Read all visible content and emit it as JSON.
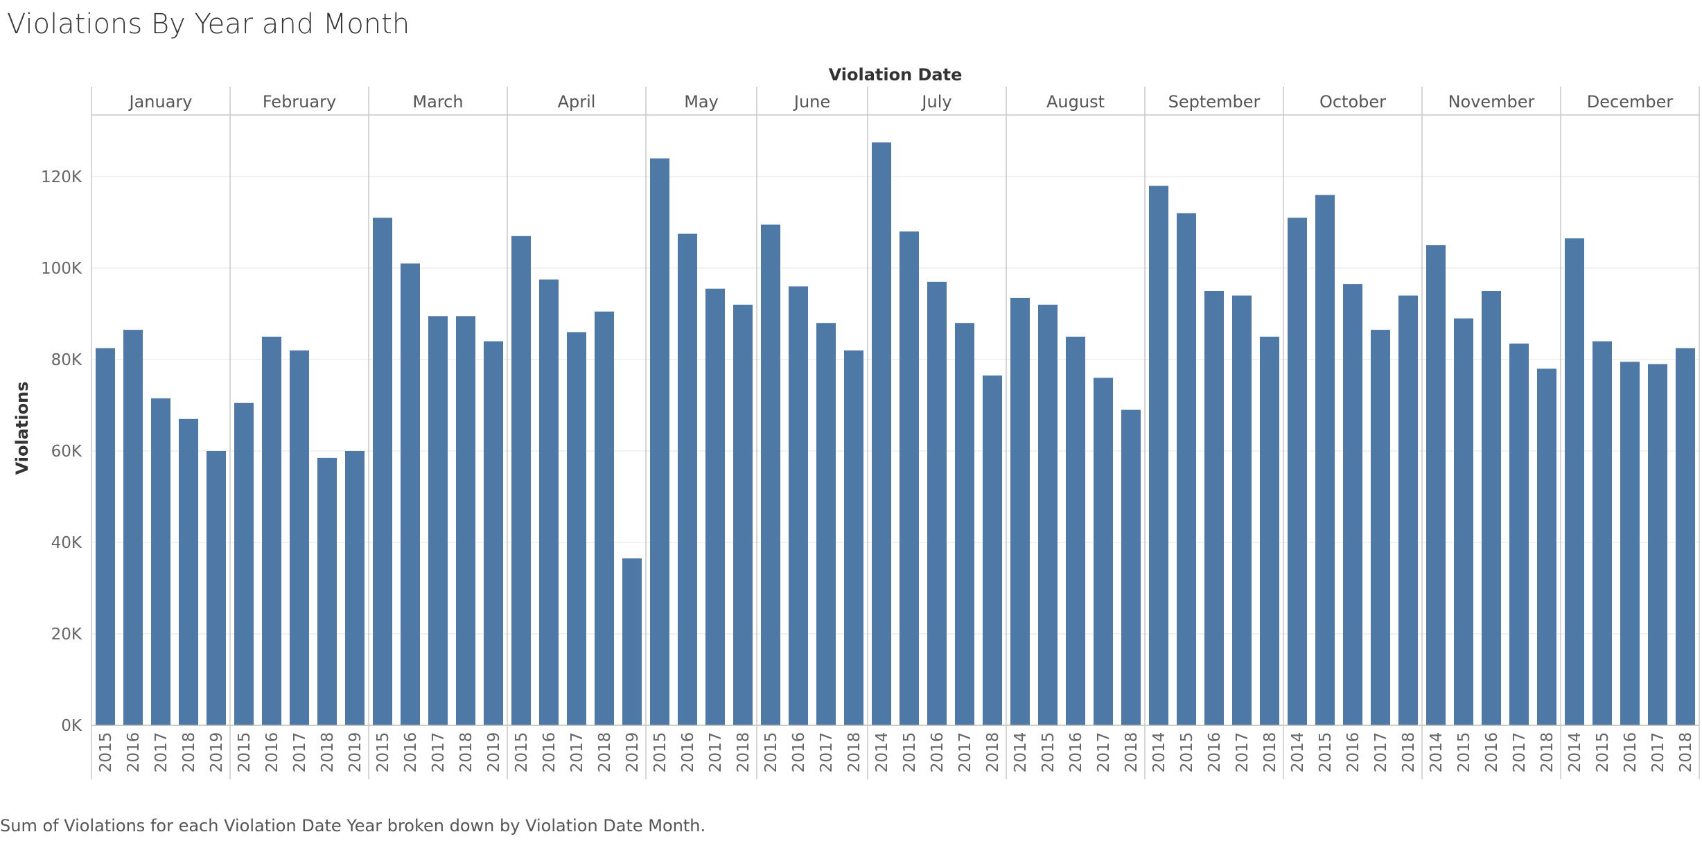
{
  "title": "Violations By Year and Month",
  "caption": "Sum of Violations for each Violation Date Year broken down by Violation Date Month.",
  "colors": {
    "bar": "#4e79a7",
    "divider": "#c8c8c8",
    "grid": "#eeeeee",
    "text": "#333333"
  },
  "chart_data": {
    "type": "bar",
    "column_header": "Violation Date",
    "ylabel": "Violations",
    "ylim": [
      0,
      132000
    ],
    "yticks": [
      0,
      20000,
      40000,
      60000,
      80000,
      100000,
      120000
    ],
    "ytick_labels": [
      "0K",
      "20K",
      "40K",
      "60K",
      "80K",
      "100K",
      "120K"
    ],
    "grid": true,
    "groups": [
      {
        "month": "January",
        "years": [
          "2015",
          "2016",
          "2017",
          "2018",
          "2019"
        ],
        "values": [
          82500,
          86500,
          71500,
          67000,
          60000
        ]
      },
      {
        "month": "February",
        "years": [
          "2015",
          "2016",
          "2017",
          "2018",
          "2019"
        ],
        "values": [
          70500,
          85000,
          82000,
          58500,
          60000
        ]
      },
      {
        "month": "March",
        "years": [
          "2015",
          "2016",
          "2017",
          "2018",
          "2019"
        ],
        "values": [
          111000,
          101000,
          89500,
          89500,
          84000
        ]
      },
      {
        "month": "April",
        "years": [
          "2015",
          "2016",
          "2017",
          "2018",
          "2019"
        ],
        "values": [
          107000,
          97500,
          86000,
          90500,
          36500
        ]
      },
      {
        "month": "May",
        "years": [
          "2015",
          "2016",
          "2017",
          "2018"
        ],
        "values": [
          124000,
          107500,
          95500,
          92000
        ]
      },
      {
        "month": "June",
        "years": [
          "2015",
          "2016",
          "2017",
          "2018"
        ],
        "values": [
          109500,
          96000,
          88000,
          82000
        ]
      },
      {
        "month": "July",
        "years": [
          "2014",
          "2015",
          "2016",
          "2017",
          "2018"
        ],
        "values": [
          127500,
          108000,
          97000,
          88000,
          76500
        ]
      },
      {
        "month": "August",
        "years": [
          "2014",
          "2015",
          "2016",
          "2017",
          "2018"
        ],
        "values": [
          93500,
          92000,
          85000,
          76000,
          69000
        ]
      },
      {
        "month": "September",
        "years": [
          "2014",
          "2015",
          "2016",
          "2017",
          "2018"
        ],
        "values": [
          118000,
          112000,
          95000,
          94000,
          85000
        ]
      },
      {
        "month": "October",
        "years": [
          "2014",
          "2015",
          "2016",
          "2017",
          "2018"
        ],
        "values": [
          111000,
          116000,
          96500,
          86500,
          94000
        ]
      },
      {
        "month": "November",
        "years": [
          "2014",
          "2015",
          "2016",
          "2017",
          "2018"
        ],
        "values": [
          105000,
          89000,
          95000,
          83500,
          78000
        ]
      },
      {
        "month": "December",
        "years": [
          "2014",
          "2015",
          "2016",
          "2017",
          "2018"
        ],
        "values": [
          106500,
          84000,
          79500,
          79000,
          82500
        ]
      }
    ]
  }
}
